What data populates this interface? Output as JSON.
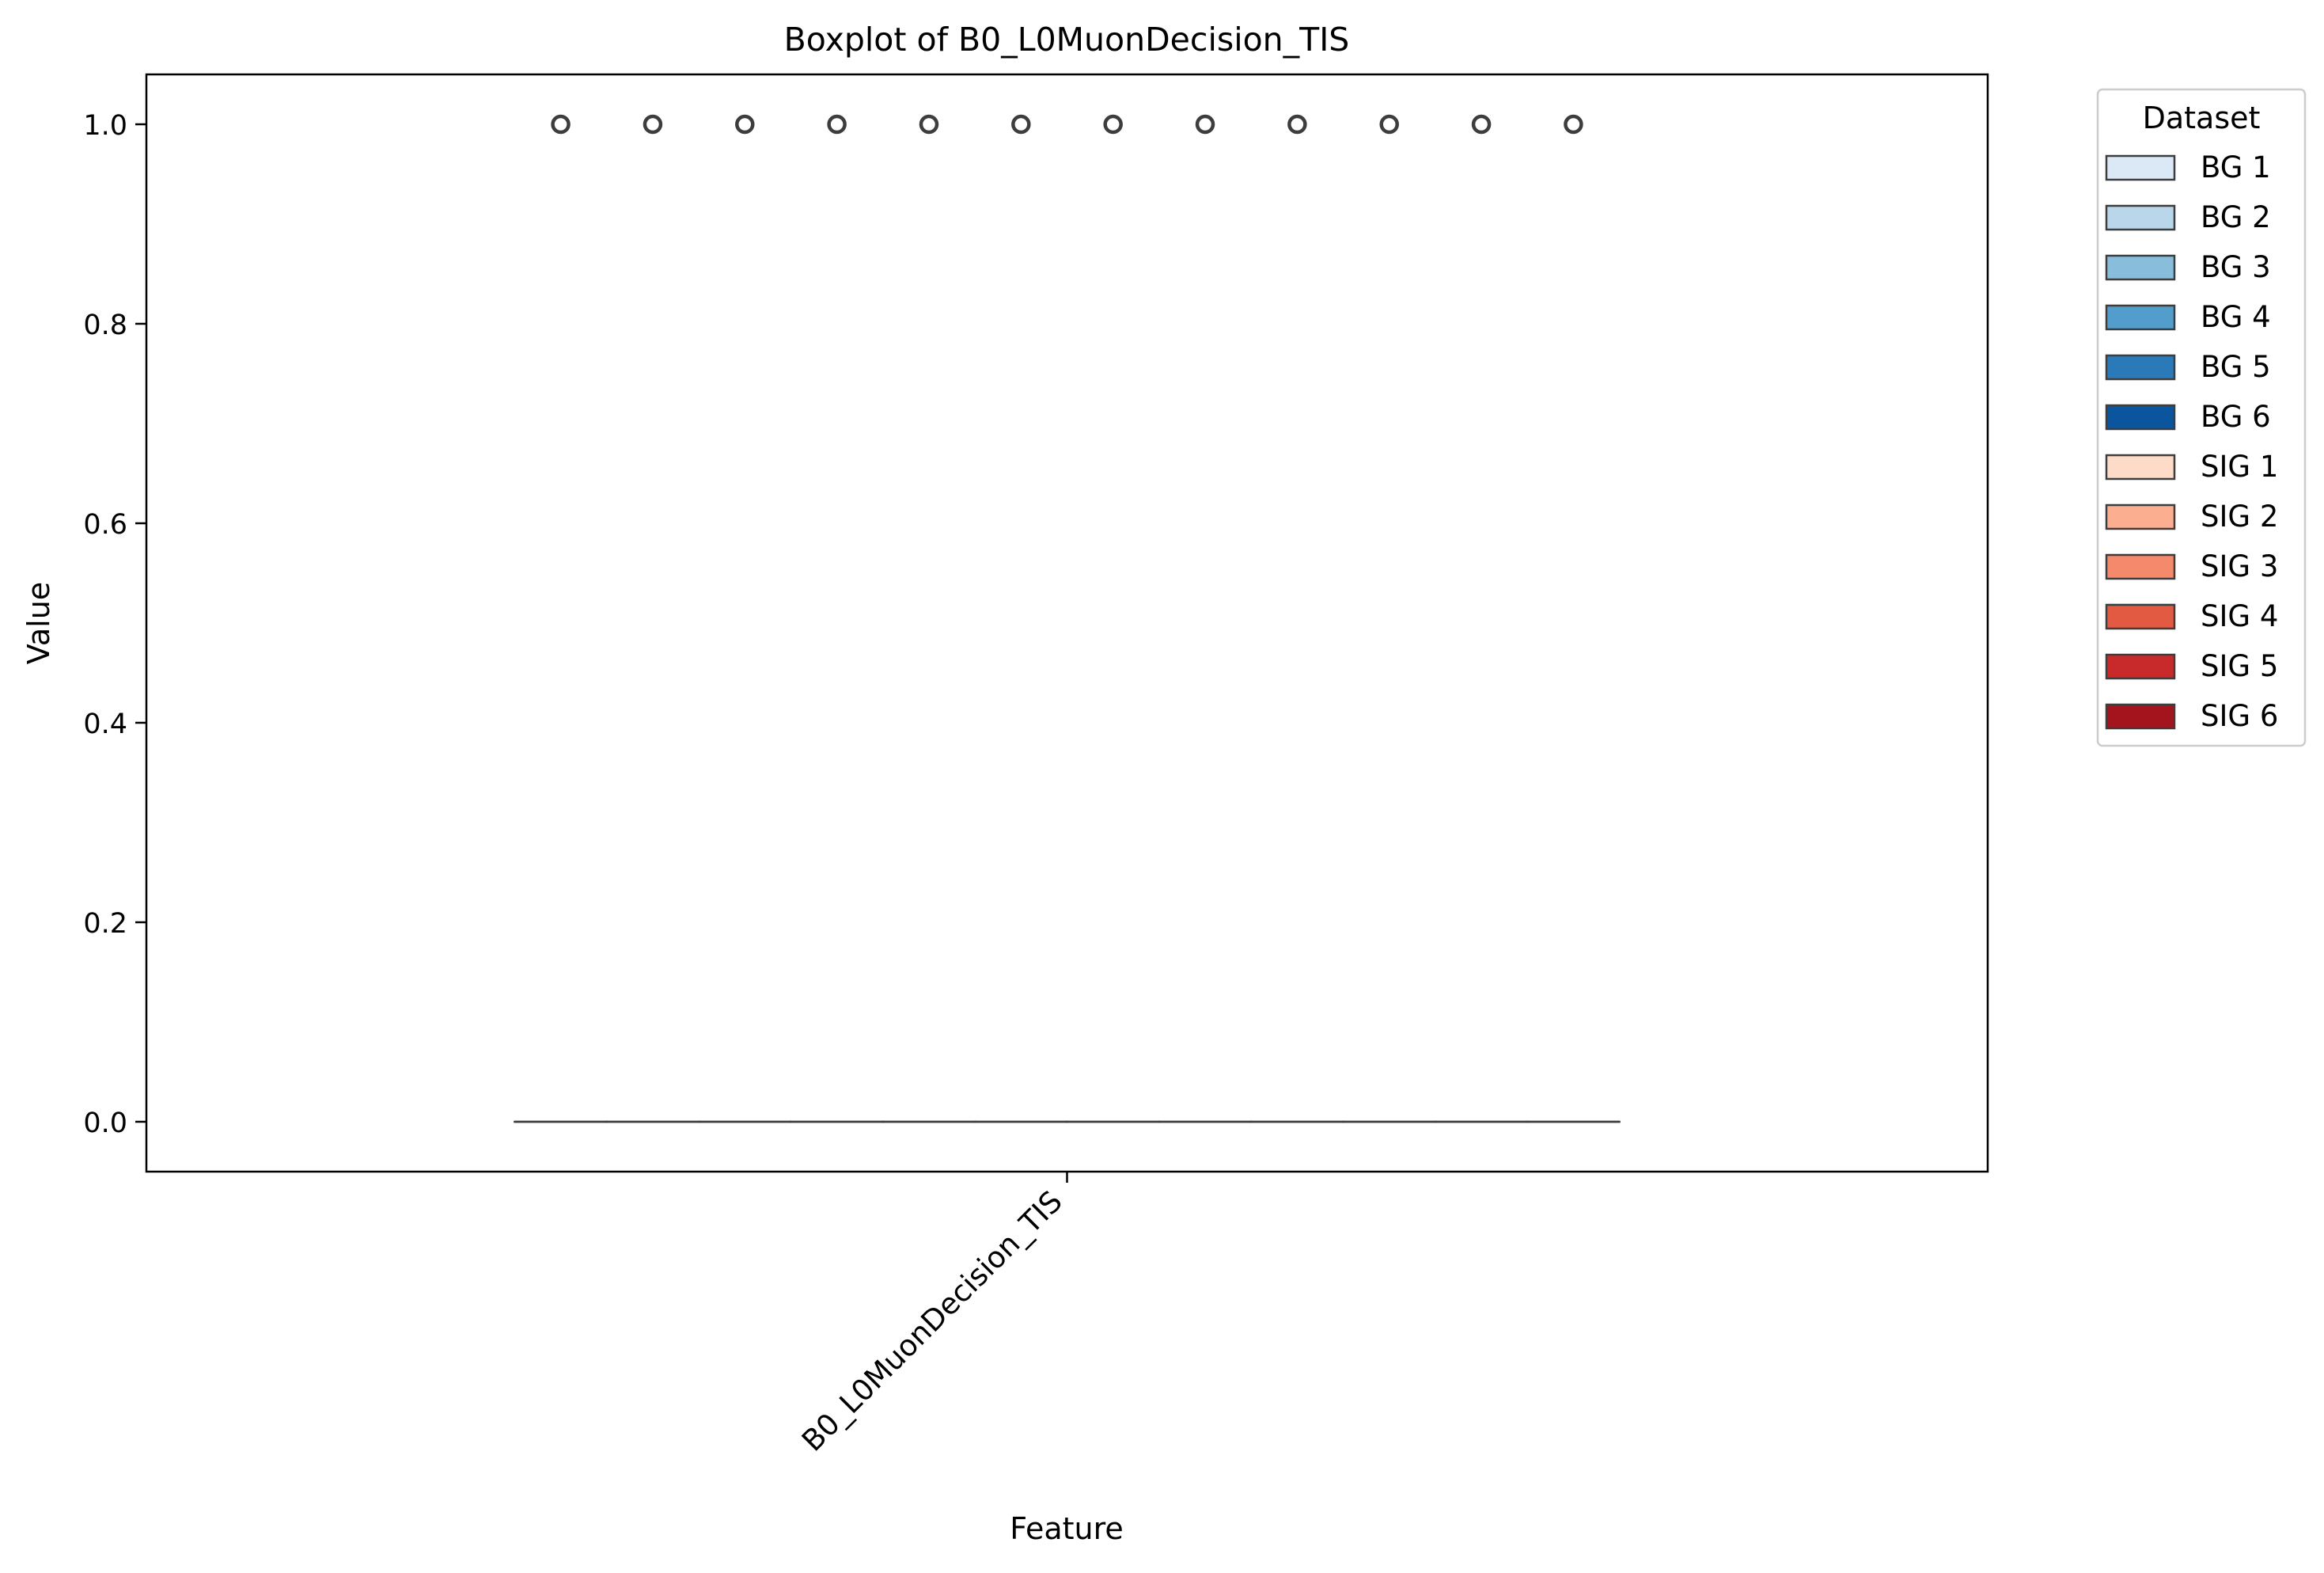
{
  "chart_data": {
    "type": "box",
    "title": "Boxplot of B0_L0MuonDecision_TIS",
    "xlabel": "Feature",
    "ylabel": "Value",
    "categories": [
      "B0_L0MuonDecision_TIS"
    ],
    "ylim": [
      -0.05,
      1.05
    ],
    "yticks": [
      0.0,
      0.2,
      0.4,
      0.6,
      0.8,
      1.0
    ],
    "ytick_labels": [
      "0.0",
      "0.2",
      "0.4",
      "0.6",
      "0.8",
      "1.0"
    ],
    "grid": false,
    "legend": {
      "title": "Dataset",
      "placement": "outside upper right"
    },
    "series": [
      {
        "name": "BG 1",
        "color": "#dbe9f6",
        "box": {
          "min": 0,
          "q1": 0,
          "median": 0,
          "q3": 0,
          "max": 0
        },
        "outliers": [
          1
        ]
      },
      {
        "name": "BG 2",
        "color": "#bad6ea",
        "box": {
          "min": 0,
          "q1": 0,
          "median": 0,
          "q3": 0,
          "max": 0
        },
        "outliers": [
          1
        ]
      },
      {
        "name": "BG 3",
        "color": "#88bedc",
        "box": {
          "min": 0,
          "q1": 0,
          "median": 0,
          "q3": 0,
          "max": 0
        },
        "outliers": [
          1
        ]
      },
      {
        "name": "BG 4",
        "color": "#539dcc",
        "box": {
          "min": 0,
          "q1": 0,
          "median": 0,
          "q3": 0,
          "max": 0
        },
        "outliers": [
          1
        ]
      },
      {
        "name": "BG 5",
        "color": "#2a7ab9",
        "box": {
          "min": 0,
          "q1": 0,
          "median": 0,
          "q3": 0,
          "max": 0
        },
        "outliers": [
          1
        ]
      },
      {
        "name": "BG 6",
        "color": "#0b559f",
        "box": {
          "min": 0,
          "q1": 0,
          "median": 0,
          "q3": 0,
          "max": 0
        },
        "outliers": [
          1
        ]
      },
      {
        "name": "SIG 1",
        "color": "#fcdbc8",
        "box": {
          "min": 0,
          "q1": 0,
          "median": 0,
          "q3": 0,
          "max": 0
        },
        "outliers": [
          1
        ]
      },
      {
        "name": "SIG 2",
        "color": "#fcae91",
        "box": {
          "min": 0,
          "q1": 0,
          "median": 0,
          "q3": 0,
          "max": 0
        },
        "outliers": [
          1
        ]
      },
      {
        "name": "SIG 3",
        "color": "#f5896b",
        "box": {
          "min": 0,
          "q1": 0,
          "median": 0,
          "q3": 0,
          "max": 0
        },
        "outliers": [
          1
        ]
      },
      {
        "name": "SIG 4",
        "color": "#e35a43",
        "box": {
          "min": 0,
          "q1": 0,
          "median": 0,
          "q3": 0,
          "max": 0
        },
        "outliers": [
          1
        ]
      },
      {
        "name": "SIG 5",
        "color": "#c82a2b",
        "box": {
          "min": 0,
          "q1": 0,
          "median": 0,
          "q3": 0,
          "max": 0
        },
        "outliers": [
          1
        ]
      },
      {
        "name": "SIG 6",
        "color": "#a3141d",
        "box": {
          "min": 0,
          "q1": 0,
          "median": 0,
          "q3": 0,
          "max": 0
        },
        "outliers": [
          1
        ]
      }
    ]
  }
}
